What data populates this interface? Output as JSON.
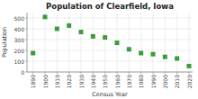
{
  "chart_data": {
    "type": "scatter",
    "title": "Population of Clearfield, Iowa",
    "xlabel": "Census Year",
    "ylabel": "Population",
    "x": [
      1890,
      1900,
      1910,
      1920,
      1930,
      1940,
      1950,
      1960,
      1970,
      1980,
      1990,
      2000,
      2010,
      2020
    ],
    "values": [
      175,
      510,
      400,
      430,
      370,
      330,
      320,
      270,
      210,
      175,
      165,
      140,
      125,
      55
    ],
    "color": "#3a9c3a",
    "marker": "square",
    "xlim": [
      1885,
      2023
    ],
    "ylim": [
      0,
      550
    ],
    "xticks": [
      1890,
      1900,
      1910,
      1920,
      1930,
      1940,
      1950,
      1960,
      1970,
      1980,
      1990,
      2000,
      2010,
      2020
    ],
    "yticks": [
      0,
      100,
      200,
      300,
      400,
      500
    ],
    "grid": true
  }
}
